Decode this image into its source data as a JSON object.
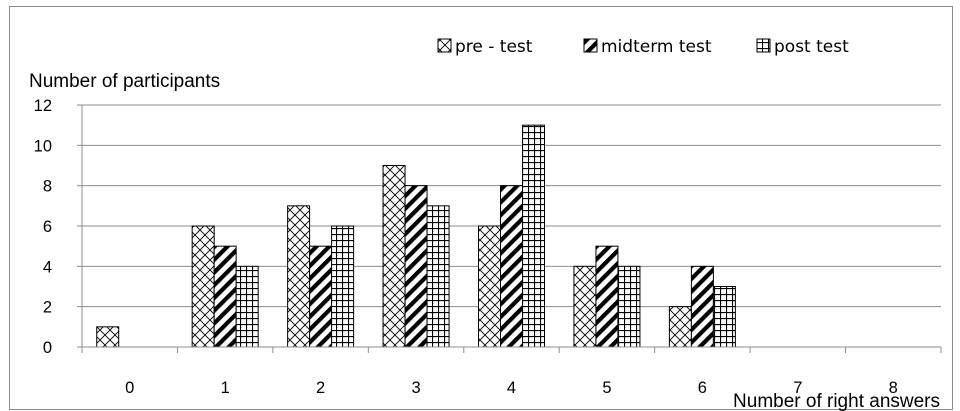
{
  "chart_data": {
    "type": "bar",
    "categories": [
      "0",
      "1",
      "2",
      "3",
      "4",
      "5",
      "6",
      "7",
      "8"
    ],
    "series": [
      {
        "name": "pre - test",
        "values": [
          1,
          6,
          7,
          9,
          6,
          4,
          2,
          0,
          0
        ],
        "pattern": "crosshatch"
      },
      {
        "name": "midterm test",
        "values": [
          0,
          5,
          5,
          8,
          8,
          5,
          4,
          0,
          0
        ],
        "pattern": "diagonal"
      },
      {
        "name": "post test",
        "values": [
          0,
          4,
          6,
          7,
          11,
          4,
          3,
          0,
          0
        ],
        "pattern": "grid"
      }
    ],
    "xlabel": "Number of right answers",
    "ylabel": "Number of participants",
    "ylim": [
      0,
      12
    ],
    "yticks": [
      0,
      2,
      4,
      6,
      8,
      10,
      12
    ],
    "grid": true,
    "legend_position": "top-right"
  }
}
